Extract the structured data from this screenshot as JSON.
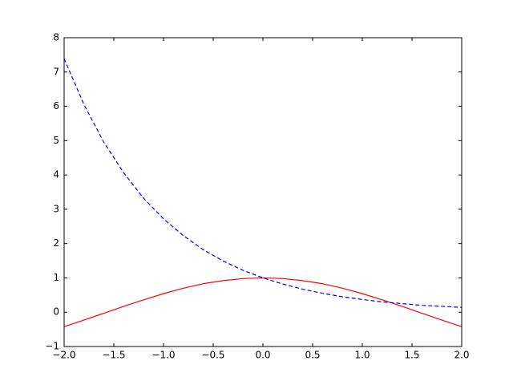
{
  "chart_data": {
    "type": "line",
    "x": [
      -2,
      -1.8,
      -1.6,
      -1.4,
      -1.2,
      -1,
      -0.8,
      -0.6,
      -0.4,
      -0.2,
      0,
      0.2,
      0.4,
      0.6,
      0.8,
      1,
      1.2,
      1.4,
      1.6,
      1.8,
      2
    ],
    "series": [
      {
        "color": "#ff0000",
        "linestyle": "solid",
        "values": [
          -0.42,
          -0.23,
          -0.03,
          0.17,
          0.36,
          0.54,
          0.7,
          0.83,
          0.92,
          0.98,
          1,
          0.98,
          0.92,
          0.83,
          0.7,
          0.54,
          0.36,
          0.17,
          -0.03,
          -0.23,
          -0.42
        ]
      },
      {
        "color": "#0000ff",
        "linestyle": "dashed",
        "values": [
          7.39,
          6.05,
          4.95,
          4.06,
          3.32,
          2.72,
          2.23,
          1.82,
          1.49,
          1.22,
          1,
          0.82,
          0.67,
          0.55,
          0.45,
          0.37,
          0.3,
          0.25,
          0.2,
          0.17,
          0.14
        ]
      }
    ],
    "xlim": [
      -2,
      2
    ],
    "xticks": [
      {
        "value": -2,
        "label": "−2.0"
      },
      {
        "value": -1.5,
        "label": "−1.5"
      },
      {
        "value": -1,
        "label": "−1.0"
      },
      {
        "value": -0.5,
        "label": "−0.5"
      },
      {
        "value": 0,
        "label": "0.0"
      },
      {
        "value": 0.5,
        "label": "0.5"
      },
      {
        "value": 1,
        "label": "1.0"
      },
      {
        "value": 1.5,
        "label": "1.5"
      },
      {
        "value": 2,
        "label": "2.0"
      }
    ],
    "ylim": [
      -1,
      8
    ],
    "yticks": [
      {
        "value": -1,
        "label": "−1"
      },
      0,
      1,
      2,
      3,
      4,
      5,
      6,
      7,
      8
    ],
    "grid": false
  }
}
